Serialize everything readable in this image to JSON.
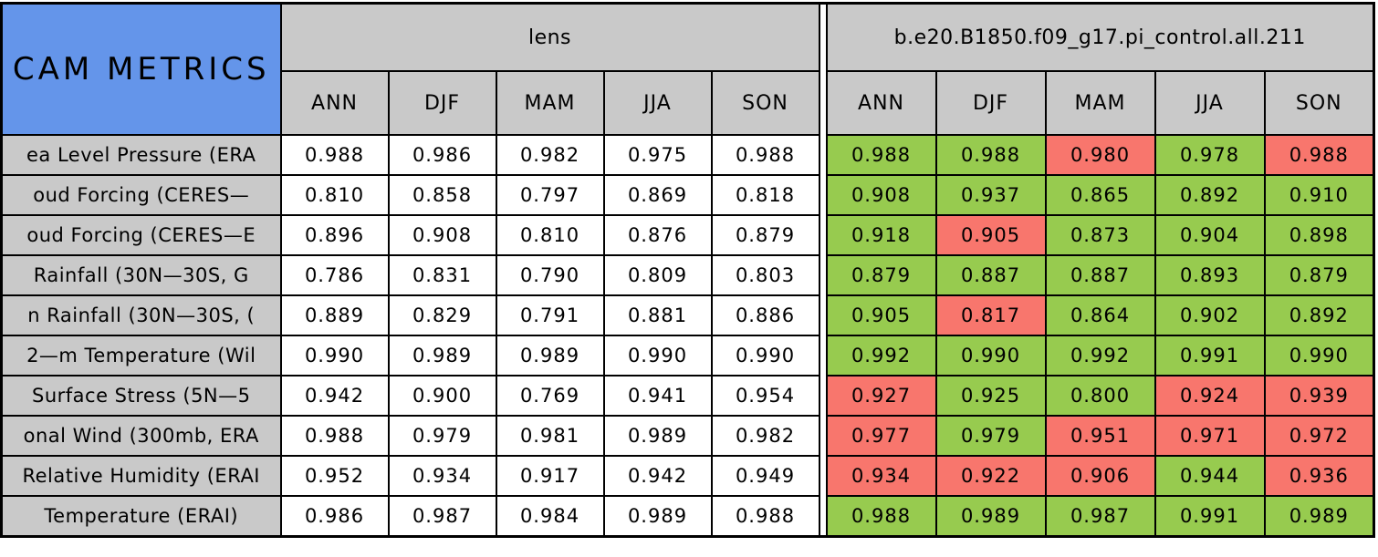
{
  "colors": {
    "title_bg": "#6495EA",
    "header_bg": "#C9C9C9",
    "plain_bg": "#FFFFFF",
    "good": "#97CB4F",
    "bad": "#F8766D",
    "border": "#000000"
  },
  "chart_data": {
    "type": "table",
    "title": "CAM METRICS",
    "column_groups": [
      "lens",
      "b.e20.B1850.f09_g17.pi_control.all.211"
    ],
    "seasons": [
      "ANN",
      "DJF",
      "MAM",
      "JJA",
      "SON"
    ],
    "rows": [
      {
        "label": "ea Level Pressure (ERA",
        "lens": [
          "0.988",
          "0.986",
          "0.982",
          "0.975",
          "0.988"
        ],
        "control": [
          "0.988",
          "0.988",
          "0.980",
          "0.978",
          "0.988"
        ],
        "control_flags": [
          "good",
          "good",
          "bad",
          "good",
          "bad"
        ]
      },
      {
        "label": "oud Forcing (CERES—",
        "lens": [
          "0.810",
          "0.858",
          "0.797",
          "0.869",
          "0.818"
        ],
        "control": [
          "0.908",
          "0.937",
          "0.865",
          "0.892",
          "0.910"
        ],
        "control_flags": [
          "good",
          "good",
          "good",
          "good",
          "good"
        ]
      },
      {
        "label": "oud Forcing (CERES—E",
        "lens": [
          "0.896",
          "0.908",
          "0.810",
          "0.876",
          "0.879"
        ],
        "control": [
          "0.918",
          "0.905",
          "0.873",
          "0.904",
          "0.898"
        ],
        "control_flags": [
          "good",
          "bad",
          "good",
          "good",
          "good"
        ]
      },
      {
        "label": "Rainfall (30N—30S, G",
        "lens": [
          "0.786",
          "0.831",
          "0.790",
          "0.809",
          "0.803"
        ],
        "control": [
          "0.879",
          "0.887",
          "0.887",
          "0.893",
          "0.879"
        ],
        "control_flags": [
          "good",
          "good",
          "good",
          "good",
          "good"
        ]
      },
      {
        "label": "n Rainfall (30N—30S, (",
        "lens": [
          "0.889",
          "0.829",
          "0.791",
          "0.881",
          "0.886"
        ],
        "control": [
          "0.905",
          "0.817",
          "0.864",
          "0.902",
          "0.892"
        ],
        "control_flags": [
          "good",
          "bad",
          "good",
          "good",
          "good"
        ]
      },
      {
        "label": "2—m Temperature (Wil",
        "lens": [
          "0.990",
          "0.989",
          "0.989",
          "0.990",
          "0.990"
        ],
        "control": [
          "0.992",
          "0.990",
          "0.992",
          "0.991",
          "0.990"
        ],
        "control_flags": [
          "good",
          "good",
          "good",
          "good",
          "good"
        ]
      },
      {
        "label": "Surface Stress (5N—5",
        "lens": [
          "0.942",
          "0.900",
          "0.769",
          "0.941",
          "0.954"
        ],
        "control": [
          "0.927",
          "0.925",
          "0.800",
          "0.924",
          "0.939"
        ],
        "control_flags": [
          "bad",
          "good",
          "good",
          "bad",
          "bad"
        ]
      },
      {
        "label": "onal Wind (300mb, ERA",
        "lens": [
          "0.988",
          "0.979",
          "0.981",
          "0.989",
          "0.982"
        ],
        "control": [
          "0.977",
          "0.979",
          "0.951",
          "0.971",
          "0.972"
        ],
        "control_flags": [
          "bad",
          "good",
          "bad",
          "bad",
          "bad"
        ]
      },
      {
        "label": "Relative Humidity (ERAI",
        "lens": [
          "0.952",
          "0.934",
          "0.917",
          "0.942",
          "0.949"
        ],
        "control": [
          "0.934",
          "0.922",
          "0.906",
          "0.944",
          "0.936"
        ],
        "control_flags": [
          "bad",
          "bad",
          "bad",
          "good",
          "bad"
        ]
      },
      {
        "label": "Temperature (ERAI)",
        "lens": [
          "0.986",
          "0.987",
          "0.984",
          "0.989",
          "0.988"
        ],
        "control": [
          "0.988",
          "0.989",
          "0.987",
          "0.991",
          "0.989"
        ],
        "control_flags": [
          "good",
          "good",
          "good",
          "good",
          "good"
        ]
      }
    ]
  }
}
